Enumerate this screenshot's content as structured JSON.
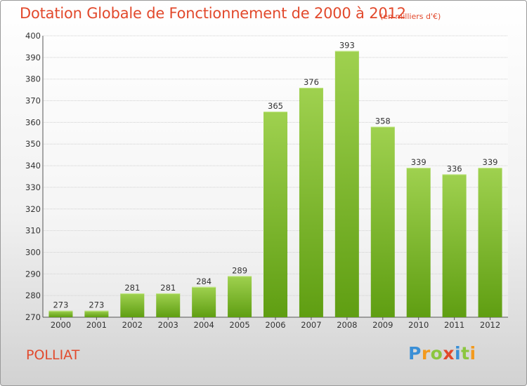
{
  "title": "Dotation Globale de Fonctionnement de 2000 à 2012",
  "subtitle": "(en milliers d'€)",
  "commune": "POLLIAT",
  "logo": {
    "text": "Proxiti",
    "letters": [
      {
        "ch": "P",
        "color": "#3a8fd6"
      },
      {
        "ch": "r",
        "color": "#f39a1e"
      },
      {
        "ch": "o",
        "color": "#8cc63f"
      },
      {
        "ch": "x",
        "color": "#e2492c"
      },
      {
        "ch": "i",
        "color": "#3a8fd6"
      },
      {
        "ch": "t",
        "color": "#8cc63f"
      },
      {
        "ch": "i",
        "color": "#f39a1e"
      }
    ]
  },
  "colors": {
    "title": "#e2492c",
    "bar_top": "#9fd14f",
    "bar_bottom": "#5f9e12",
    "grid": "#cfcfcf"
  },
  "chart_data": {
    "type": "bar",
    "categories": [
      "2000",
      "2001",
      "2002",
      "2003",
      "2004",
      "2005",
      "2006",
      "2007",
      "2008",
      "2009",
      "2010",
      "2011",
      "2012"
    ],
    "values": [
      273,
      273,
      281,
      281,
      284,
      289,
      365,
      376,
      393,
      358,
      339,
      336,
      339
    ],
    "data_labels": [
      "273",
      "273",
      "281",
      "281",
      "284",
      "289",
      "365",
      "376",
      "393",
      "358",
      "339",
      "336",
      "339"
    ],
    "ylim": [
      270,
      400
    ],
    "yticks": [
      270,
      280,
      290,
      300,
      310,
      320,
      330,
      340,
      350,
      360,
      370,
      380,
      390,
      400
    ],
    "grid": true,
    "xlabel": "",
    "ylabel": ""
  }
}
